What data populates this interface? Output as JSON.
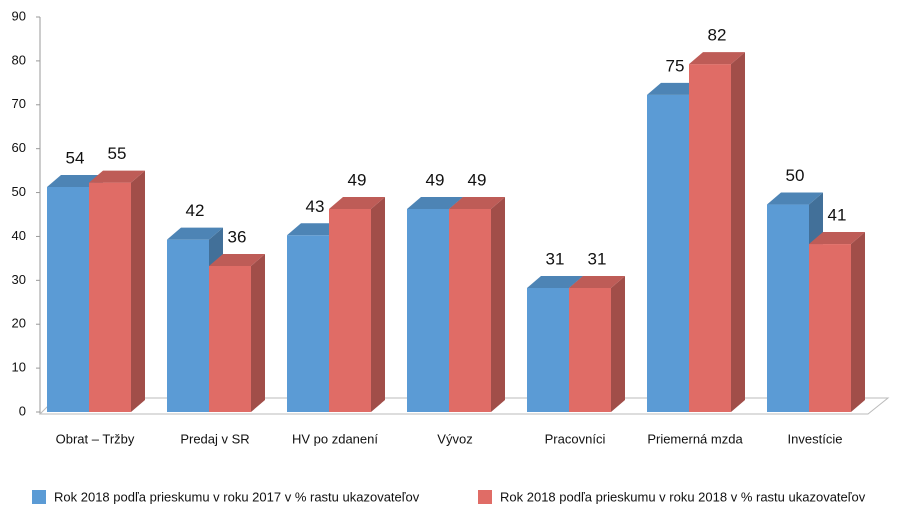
{
  "chart_data": {
    "type": "bar3d",
    "categories": [
      "Obrat – Tržby",
      "Predaj v SR",
      "HV po zdanení",
      "Vývoz",
      "Pracovníci",
      "Priemerná mzda",
      "Investície"
    ],
    "series": [
      {
        "name": "Rok 2018 podľa prieskumu v roku 2017 v % rastu ukazovateľov",
        "color": "#5b9bd5",
        "values": [
          54,
          42,
          43,
          49,
          31,
          75,
          50
        ]
      },
      {
        "name": "Rok 2018 podľa prieskumu v roku 2018 v % rastu ukazovateľov",
        "color": "#e06c66",
        "values": [
          55,
          36,
          49,
          49,
          31,
          82,
          41
        ]
      }
    ],
    "ylim": [
      0,
      90
    ],
    "yticks": [
      0,
      10,
      20,
      30,
      40,
      50,
      60,
      70,
      80,
      90
    ],
    "grid": false,
    "legend": "bottom"
  }
}
